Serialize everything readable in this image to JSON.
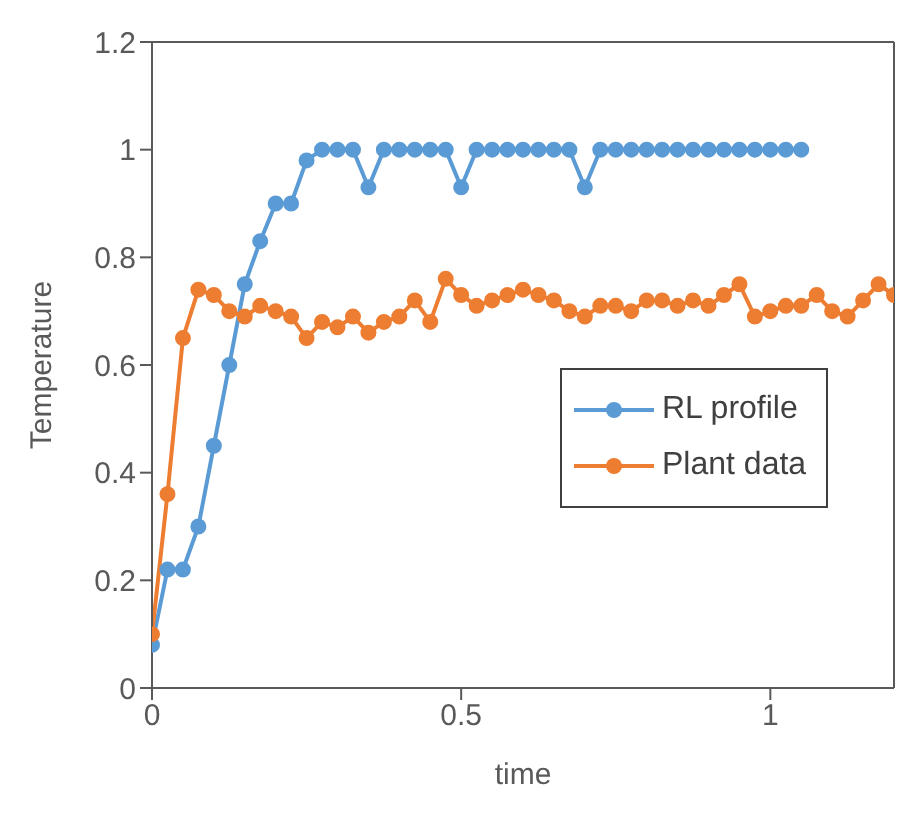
{
  "chart_data": {
    "type": "line",
    "xlabel": "time",
    "ylabel": "Temperature",
    "xlim": [
      0,
      1.2
    ],
    "xticks": [
      0,
      0.5,
      1
    ],
    "ylim": [
      0,
      1.2
    ],
    "yticks": [
      0,
      0.2,
      0.4,
      0.6,
      0.8,
      1,
      1.2
    ],
    "grid": false,
    "legend": "right",
    "marker": "circle",
    "line_style": "solid",
    "series": [
      {
        "name": "RL profile",
        "color": "#5b9bd5",
        "x": [
          0,
          0.025,
          0.05,
          0.075,
          0.1,
          0.125,
          0.15,
          0.175,
          0.2,
          0.225,
          0.25,
          0.275,
          0.3,
          0.325,
          0.35,
          0.375,
          0.4,
          0.425,
          0.45,
          0.475,
          0.5,
          0.525,
          0.55,
          0.575,
          0.6,
          0.625,
          0.65,
          0.675,
          0.7,
          0.725,
          0.75,
          0.775,
          0.8,
          0.825,
          0.85,
          0.875,
          0.9,
          0.925,
          0.95,
          0.975,
          1,
          1.025,
          1.05
        ],
        "values": [
          0.08,
          0.22,
          0.22,
          0.3,
          0.45,
          0.6,
          0.75,
          0.83,
          0.9,
          0.9,
          0.98,
          1,
          1,
          1,
          0.93,
          1,
          1,
          1,
          1,
          1,
          0.93,
          1,
          1,
          1,
          1,
          1,
          1,
          1,
          0.93,
          1,
          1,
          1,
          1,
          1,
          1,
          1,
          1,
          1,
          1,
          1,
          1,
          1,
          1
        ]
      },
      {
        "name": "Plant data",
        "color": "#ed7d31",
        "x": [
          0,
          0.025,
          0.05,
          0.075,
          0.1,
          0.125,
          0.15,
          0.175,
          0.2,
          0.225,
          0.25,
          0.275,
          0.3,
          0.325,
          0.35,
          0.375,
          0.4,
          0.425,
          0.45,
          0.475,
          0.5,
          0.525,
          0.55,
          0.575,
          0.6,
          0.625,
          0.65,
          0.675,
          0.7,
          0.725,
          0.75,
          0.775,
          0.8,
          0.825,
          0.85,
          0.875,
          0.9,
          0.925,
          0.95,
          0.975,
          1,
          1.025,
          1.05,
          1.075,
          1.1,
          1.125,
          1.15,
          1.175,
          1.2
        ],
        "values": [
          0.1,
          0.36,
          0.65,
          0.74,
          0.73,
          0.7,
          0.69,
          0.71,
          0.7,
          0.69,
          0.65,
          0.68,
          0.67,
          0.69,
          0.66,
          0.68,
          0.69,
          0.72,
          0.68,
          0.76,
          0.73,
          0.71,
          0.72,
          0.73,
          0.74,
          0.73,
          0.72,
          0.7,
          0.69,
          0.71,
          0.71,
          0.7,
          0.72,
          0.72,
          0.71,
          0.72,
          0.71,
          0.73,
          0.75,
          0.69,
          0.7,
          0.71,
          0.71,
          0.73,
          0.7,
          0.69,
          0.72,
          0.75,
          0.73
        ]
      }
    ]
  }
}
